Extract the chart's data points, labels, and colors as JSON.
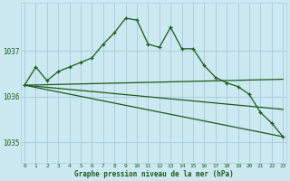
{
  "bg_color": "#cce8f0",
  "grid_color": "#aacfdf",
  "line_color": "#1a5c1a",
  "xlabel": "Graphe pression niveau de la mer (hPa)",
  "xlabel_color": "#1a5c1a",
  "tick_color": "#1a5c1a",
  "ylim": [
    1034.55,
    1038.05
  ],
  "yticks": [
    1035,
    1036,
    1037
  ],
  "xlim": [
    -0.3,
    23.3
  ],
  "xticks": [
    0,
    1,
    2,
    3,
    4,
    5,
    6,
    7,
    8,
    9,
    10,
    11,
    12,
    13,
    14,
    15,
    16,
    17,
    18,
    19,
    20,
    21,
    22,
    23
  ],
  "series": [
    {
      "x": [
        0,
        1,
        2,
        3,
        4,
        5,
        6,
        7,
        8,
        9,
        10,
        11,
        12,
        13,
        14,
        15,
        16,
        17,
        18,
        19,
        20,
        21,
        22,
        23
      ],
      "y": [
        1036.25,
        1036.65,
        1036.35,
        1036.55,
        1036.65,
        1036.75,
        1036.85,
        1037.15,
        1037.4,
        1037.72,
        1037.68,
        1037.15,
        1037.08,
        1037.52,
        1037.05,
        1037.05,
        1036.68,
        1036.42,
        1036.3,
        1036.22,
        1036.05,
        1035.65,
        1035.42,
        1035.12
      ],
      "has_markers": true
    },
    {
      "x": [
        0,
        23
      ],
      "y": [
        1036.25,
        1036.38
      ],
      "has_markers": false
    },
    {
      "x": [
        0,
        23
      ],
      "y": [
        1036.25,
        1035.72
      ],
      "has_markers": false
    },
    {
      "x": [
        0,
        23
      ],
      "y": [
        1036.25,
        1035.12
      ],
      "has_markers": false
    }
  ]
}
